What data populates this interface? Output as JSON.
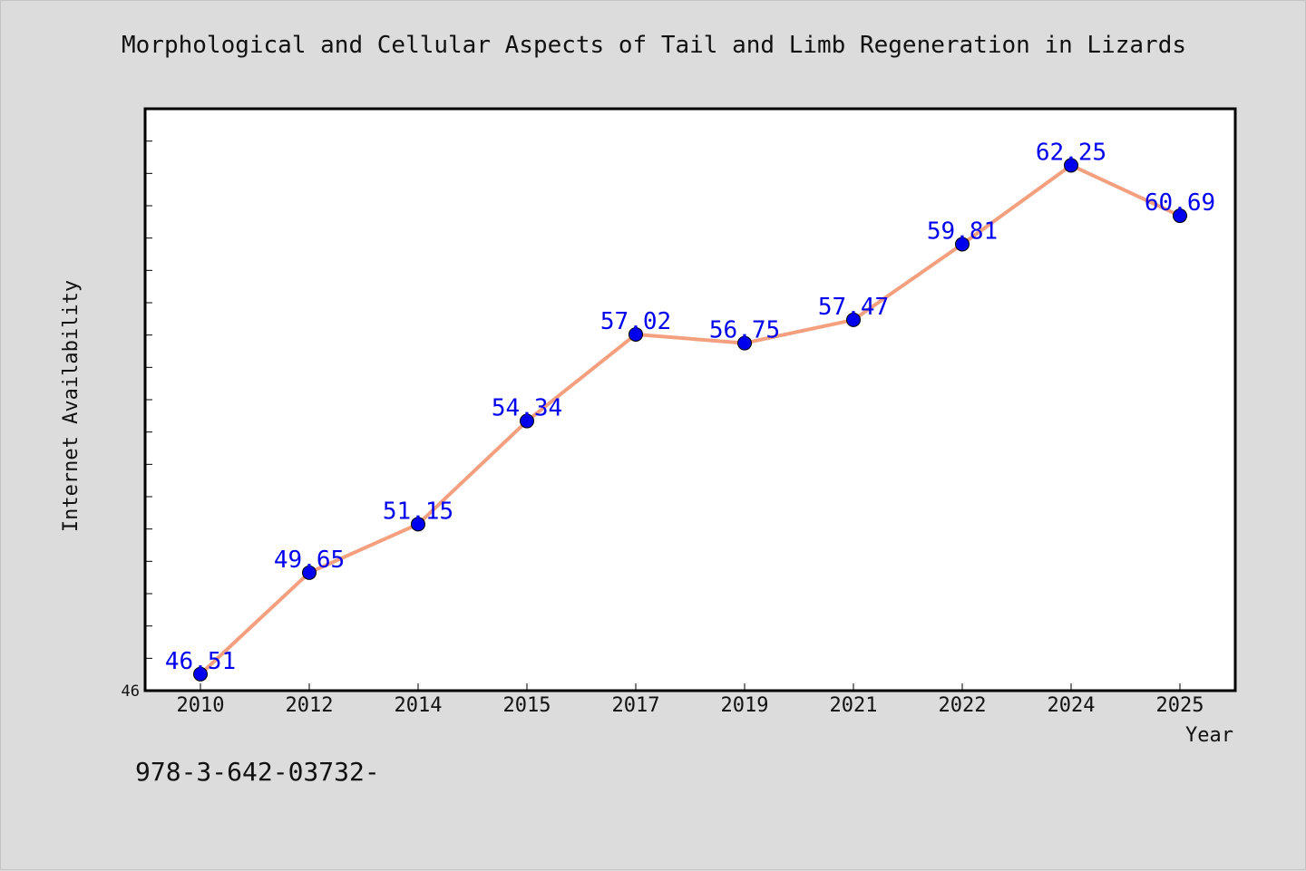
{
  "chart_data": {
    "type": "line",
    "title": "Morphological and Cellular Aspects of Tail and Limb Regeneration in Lizards",
    "xlabel": "Year",
    "ylabel": "Internet Availability",
    "categories": [
      "2010",
      "2012",
      "2014",
      "2015",
      "2017",
      "2019",
      "2021",
      "2022",
      "2024",
      "2025"
    ],
    "series": [
      {
        "values": [
          46.51,
          49.65,
          51.15,
          54.34,
          57.02,
          56.75,
          57.47,
          59.81,
          62.25,
          60.69
        ],
        "labels": [
          "46.51",
          "49.65",
          "51.15",
          "54.34",
          "57.02",
          "56.75",
          "57.47",
          "59.81",
          "62.25",
          "60.69"
        ],
        "line_color": "#f4a07f",
        "marker_color": "#0000ee",
        "label_color": "#0000ee"
      }
    ],
    "ylim": [
      46,
      64
    ],
    "y_tick_labels": [
      {
        "value": 46,
        "label": "46"
      }
    ],
    "y_minor_tick_step": 1,
    "grid": false,
    "legend": "none"
  },
  "footer": {
    "text": "978-3-642-03732-"
  }
}
